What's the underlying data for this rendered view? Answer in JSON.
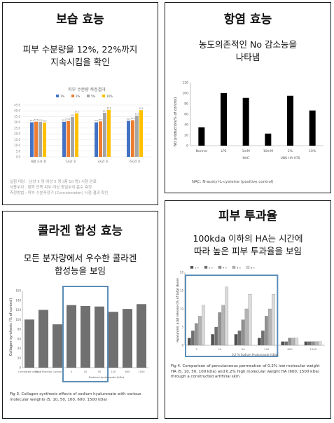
{
  "panels": {
    "moisture": {
      "title": "보습 효능",
      "subtitle": [
        "피부 수분량을 12%, 22%까지",
        "지속시킴을 확인"
      ],
      "chart_title": "피부 수분량 측정결과",
      "notes": [
        "실험 대상 : 남성 5 명 여성 5 명 (총 10 명) 시험 완료",
        "사용부위 : 팔뚝 안쪽 피부 대상 동일부위 흡수 측정",
        "측정방법 : 피부 수분측정기 (Corneometer) 시험 결과 확인"
      ]
    },
    "antiinflam": {
      "title": "항염 효능",
      "subtitle": [
        "농도의존적인 No 감소능을",
        "나타냄"
      ],
      "ylabel": "NO production(% of control)",
      "note": "NAC: N-acetyl-L-cysteine (positive control)",
      "group_labels": [
        "NAC",
        "UNU HA-070"
      ]
    },
    "collagen": {
      "title": "콜라겐 합성 효능",
      "subtitle": [
        "모든 분자량에서 우수한 콜라겐",
        "합성능을 보임"
      ],
      "ylabel": "Collagen synthesis (% of control)",
      "group_label": "Sodium Hyaluronate (kDa)",
      "caption": "Fig 3. Collagen synthesis effects of sodium hyaluronate with various molecular weights (5, 10, 50, 100, 600, 1500 kDa)"
    },
    "permeation": {
      "title": "피부 투과율",
      "subtitle": [
        "100kda 이하의 HA는 시간에",
        "따라 높은 피부 투과율을 보임"
      ],
      "ylabel": "Hyaluronic acid release (% of total dose)",
      "xlabel": "0.2 % Sodium Hyaluronate (kDa)",
      "caption": "Fig 4. Comparison of percutaneous permeation of 0.2% low molecular weight HA (5, 10, 50, 100 kDa) and 0.2% high molecular weight HA (600, 1500 kDa) through a constructed artificial skin."
    }
  },
  "colors": {
    "border": "#1a1a1a",
    "bar_blue": "#4472c4",
    "bar_orange": "#ed7d31",
    "bar_gray": "#a5a5a5",
    "bar_yellow": "#ffc000",
    "highlight": "#5b8db8",
    "nitric_bar": "#000000",
    "collagen_bar": "#707070"
  },
  "chart_data": [
    {
      "type": "bar",
      "categories": [
        "제품 도포 전",
        "1시간 후",
        "3시간 후",
        "6시간 후"
      ],
      "series": [
        {
          "name": "1%",
          "values": [
            30.0,
            30.5,
            30.0,
            31.3
          ]
        },
        {
          "name": "3%",
          "values": [
            30.6,
            31.2,
            30.8,
            31.8
          ]
        },
        {
          "name": "5%",
          "values": [
            30.5,
            34.6,
            38.3,
            35.8
          ]
        },
        {
          "name": "10%",
          "values": [
            29.8,
            37.8,
            40.9,
            40.6
          ]
        }
      ],
      "ylim": [
        0,
        45
      ],
      "yticks": [
        0,
        5,
        10,
        15,
        20,
        25,
        30,
        35,
        40,
        45
      ],
      "legend": "top"
    },
    {
      "type": "bar",
      "categories": [
        "Normal",
        "LPS",
        "1mM",
        "10mM",
        "2%",
        "10%"
      ],
      "values": [
        35,
        100,
        91,
        23,
        95,
        67
      ],
      "ylim": [
        0,
        120
      ],
      "yticks": [
        0,
        20,
        40,
        60,
        80,
        100,
        120
      ]
    },
    {
      "type": "bar",
      "categories": [
        "Untreated control",
        "NC-1 Placebo",
        "Control",
        "5",
        "10",
        "50",
        "100",
        "600",
        "1500"
      ],
      "values": [
        100,
        120,
        90,
        130,
        128,
        127,
        116,
        122,
        132
      ],
      "ylim": [
        0,
        160
      ],
      "yticks": [
        0,
        20,
        40,
        60,
        80,
        100,
        120,
        140,
        160
      ]
    },
    {
      "type": "bar",
      "categories": [
        "5",
        "10",
        "50",
        "100",
        "600",
        "1500"
      ],
      "series": [
        {
          "name": "1 h",
          "values": [
            2,
            3,
            3,
            2,
            1,
            1
          ]
        },
        {
          "name": "2 h",
          "values": [
            4,
            5,
            4,
            4,
            1,
            1
          ]
        },
        {
          "name": "4 h",
          "values": [
            6,
            9,
            7,
            8,
            2,
            1
          ]
        },
        {
          "name": "6 h",
          "values": [
            8,
            11,
            10,
            10,
            2,
            1
          ]
        },
        {
          "name": "8 h",
          "values": [
            11,
            16,
            14,
            14,
            2,
            1
          ]
        }
      ],
      "ylim": [
        0,
        20
      ],
      "yticks": [
        0,
        5,
        10,
        15,
        20
      ],
      "legend": "top"
    }
  ]
}
